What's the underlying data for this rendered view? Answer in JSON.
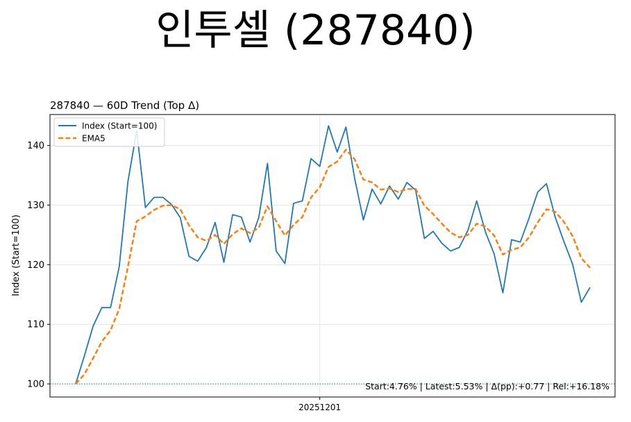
{
  "page_title": "인투셀 (287840)",
  "chart_data": {
    "type": "line",
    "title": "287840 — 60D Trend (Top Δ)",
    "xlabel": "",
    "ylabel": "Index (Start=100)",
    "ylim": [
      97.8,
      145.2
    ],
    "yticks": [
      100,
      110,
      120,
      130,
      140
    ],
    "xtick_label": "20251201",
    "xtick_index": 28,
    "grid": true,
    "legend_position": "top-left",
    "baseline": 100,
    "annotation": "Start:4.76% | Latest:5.53% | Δ(pp):+0.77 | Rel:+16.18%",
    "series": [
      {
        "name": "Index (Start=100)",
        "color": "#1f77b4",
        "style": "solid",
        "values": [
          100.0,
          104.7,
          109.7,
          112.8,
          112.8,
          119.7,
          134.0,
          142.5,
          129.6,
          131.3,
          131.3,
          130.1,
          127.9,
          121.4,
          120.6,
          122.9,
          127.1,
          120.4,
          128.4,
          128.0,
          123.8,
          127.9,
          137.0,
          122.3,
          120.2,
          130.3,
          130.7,
          137.8,
          136.5,
          143.3,
          138.9,
          143.1,
          134.5,
          127.5,
          132.7,
          130.2,
          133.2,
          131.0,
          133.8,
          132.5,
          124.4,
          125.6,
          123.6,
          122.3,
          122.9,
          125.8,
          130.7,
          125.5,
          121.8,
          115.3,
          124.2,
          123.8,
          127.8,
          132.2,
          133.6,
          128.0,
          123.9,
          120.1,
          113.7,
          116.2
        ]
      },
      {
        "name": "EMA5",
        "color": "#ff7f0e",
        "style": "dashed",
        "values": [
          100.0,
          101.6,
          104.3,
          107.1,
          109.0,
          112.6,
          119.7,
          127.3,
          128.1,
          129.2,
          129.9,
          130.0,
          129.3,
          126.6,
          124.6,
          124.0,
          125.0,
          123.5,
          125.1,
          126.1,
          125.3,
          126.2,
          129.8,
          127.3,
          124.9,
          126.7,
          128.0,
          131.3,
          133.0,
          136.4,
          137.3,
          139.3,
          137.7,
          134.3,
          133.8,
          132.6,
          132.8,
          132.2,
          132.7,
          132.7,
          129.9,
          128.5,
          126.9,
          125.4,
          124.6,
          125.0,
          126.9,
          126.4,
          124.9,
          121.7,
          122.5,
          122.9,
          124.6,
          127.1,
          129.3,
          128.9,
          127.2,
          124.8,
          121.1,
          119.5
        ]
      }
    ]
  }
}
